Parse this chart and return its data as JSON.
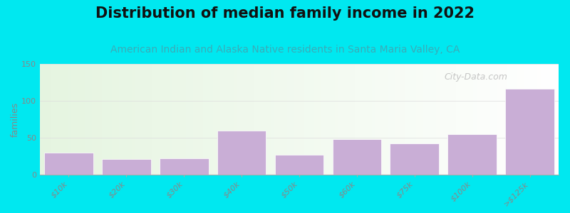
{
  "title": "Distribution of median family income in 2022",
  "subtitle": "American Indian and Alaska Native residents in Santa Maria Valley, CA",
  "categories": [
    "$10k",
    "$20k",
    "$30k",
    "$40k",
    "$50k",
    "$60k",
    "$75k",
    "$100k",
    ">$125k"
  ],
  "values": [
    30,
    21,
    22,
    60,
    27,
    48,
    42,
    55,
    116
  ],
  "bar_color": "#c9aed6",
  "bar_edge_color": "#c9aed6",
  "ylabel": "families",
  "ylim": [
    0,
    150
  ],
  "yticks": [
    0,
    50,
    100,
    150
  ],
  "bg_outer": "#00e8f0",
  "bg_plot_top_color": "#dff0d8",
  "bg_plot_bottom_color": "#f8fff8",
  "bg_right_color": "#f5f5f5",
  "title_fontsize": 15,
  "subtitle_fontsize": 10,
  "subtitle_color": "#3aacb8",
  "watermark": "City-Data.com",
  "watermark_color": "#b8b8b8",
  "tick_label_color": "#888888",
  "spine_color": "#aaaaaa"
}
